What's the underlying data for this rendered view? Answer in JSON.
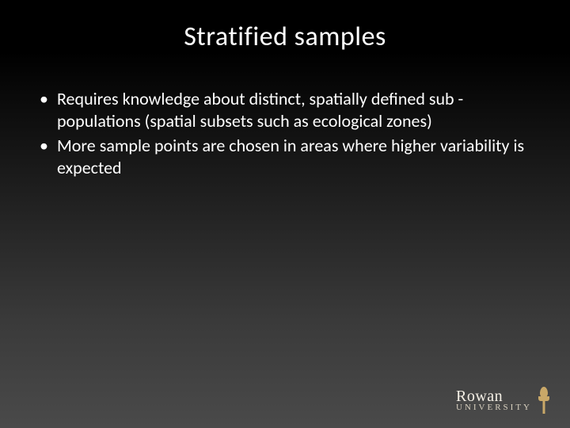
{
  "slide": {
    "title": "Stratified samples",
    "bullets": [
      "Requires knowledge about distinct, spatially defined sub -populations (spatial subsets such as ecological zones)",
      "More sample points are chosen in areas where higher variability is expected"
    ]
  },
  "logo": {
    "line1": "Rowan",
    "line2": "University"
  },
  "styling": {
    "background_gradient_top": "#000000",
    "background_gradient_bottom": "#4a4a4a",
    "text_color": "#ffffff",
    "title_fontsize": 34,
    "bullet_fontsize": 22,
    "logo_primary_fontsize": 20,
    "logo_secondary_fontsize": 11,
    "logo_color": "#f5f0e6",
    "logo_icon_color": "#c9a868"
  }
}
